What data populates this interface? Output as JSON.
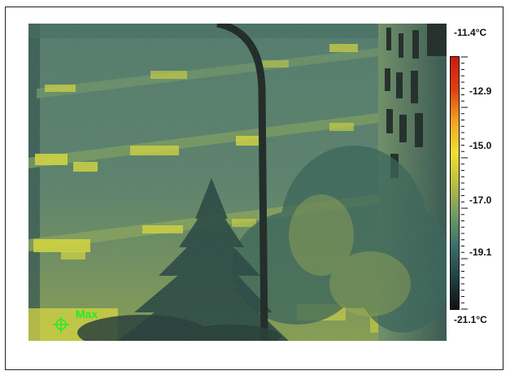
{
  "scale": {
    "max_label": "-11.4°C",
    "min_label": "-21.1°C",
    "ticks": [
      "-12.9",
      "-15.0",
      "-17.0",
      "-19.1"
    ],
    "palette": [
      "#111111",
      "#1f3f3f",
      "#3a6f6a",
      "#6f9a66",
      "#bdbf40",
      "#f0e030",
      "#f3a020",
      "#e04010",
      "#cc1a10"
    ]
  },
  "marker": {
    "label": "Max",
    "color": "#22ee22",
    "icon": "crosshair-icon"
  }
}
